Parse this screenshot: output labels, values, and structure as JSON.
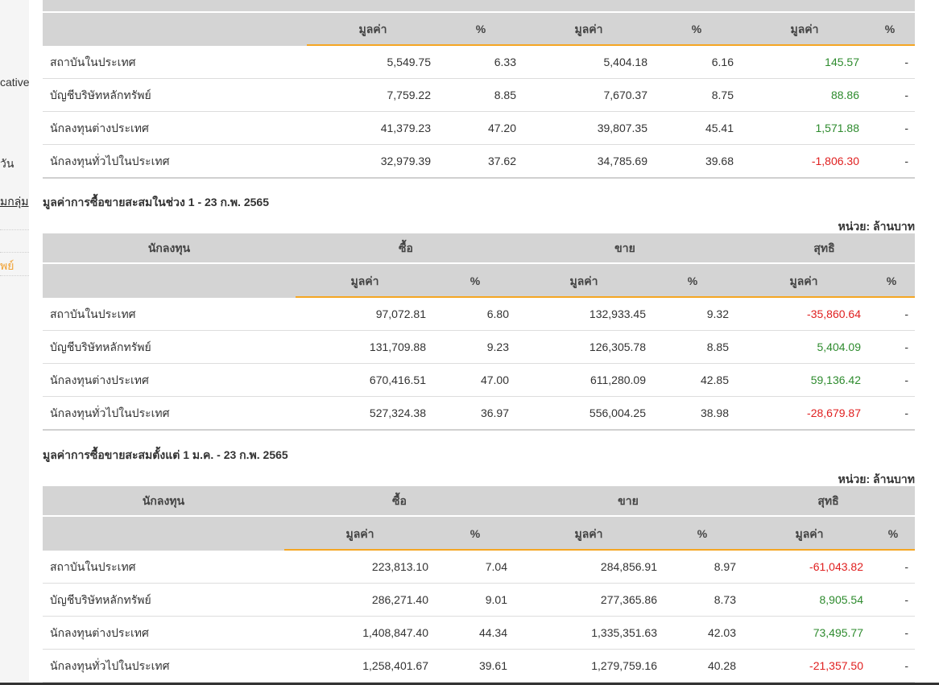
{
  "sidebar": {
    "item1": "cative",
    "item2": "วัน",
    "item3": "มกลุ่ม",
    "item4": "พย์"
  },
  "table1": {
    "sub_headers": [
      "มูลค่า",
      "%",
      "มูลค่า",
      "%",
      "มูลค่า",
      "%"
    ],
    "rows": [
      {
        "investor": "สถาบันในประเทศ",
        "buy_val": "5,549.75",
        "buy_pct": "6.33",
        "sell_val": "5,404.18",
        "sell_pct": "6.16",
        "net_val": "145.57",
        "net_pct": "-"
      },
      {
        "investor": "บัญชีบริษัทหลักทรัพย์",
        "buy_val": "7,759.22",
        "buy_pct": "8.85",
        "sell_val": "7,670.37",
        "sell_pct": "8.75",
        "net_val": "88.86",
        "net_pct": "-"
      },
      {
        "investor": "นักลงทุนต่างประเทศ",
        "buy_val": "41,379.23",
        "buy_pct": "47.20",
        "sell_val": "39,807.35",
        "sell_pct": "45.41",
        "net_val": "1,571.88",
        "net_pct": "-"
      },
      {
        "investor": "นักลงทุนทั่วไปในประเทศ",
        "buy_val": "32,979.39",
        "buy_pct": "37.62",
        "sell_val": "34,785.69",
        "sell_pct": "39.68",
        "net_val": "-1,806.30",
        "net_pct": "-"
      }
    ]
  },
  "table2": {
    "title": "มูลค่าการซื้อขายสะสมในช่วง 1 - 23 ก.พ. 2565",
    "unit": "หน่วย: ล้านบาท",
    "header": {
      "investor": "นักลงทุน",
      "buy": "ซื้อ",
      "sell": "ขาย",
      "net": "สุทธิ"
    },
    "sub_headers": [
      "มูลค่า",
      "%",
      "มูลค่า",
      "%",
      "มูลค่า",
      "%"
    ],
    "rows": [
      {
        "investor": "สถาบันในประเทศ",
        "buy_val": "97,072.81",
        "buy_pct": "6.80",
        "sell_val": "132,933.45",
        "sell_pct": "9.32",
        "net_val": "-35,860.64",
        "net_pct": "-"
      },
      {
        "investor": "บัญชีบริษัทหลักทรัพย์",
        "buy_val": "131,709.88",
        "buy_pct": "9.23",
        "sell_val": "126,305.78",
        "sell_pct": "8.85",
        "net_val": "5,404.09",
        "net_pct": "-"
      },
      {
        "investor": "นักลงทุนต่างประเทศ",
        "buy_val": "670,416.51",
        "buy_pct": "47.00",
        "sell_val": "611,280.09",
        "sell_pct": "42.85",
        "net_val": "59,136.42",
        "net_pct": "-"
      },
      {
        "investor": "นักลงทุนทั่วไปในประเทศ",
        "buy_val": "527,324.38",
        "buy_pct": "36.97",
        "sell_val": "556,004.25",
        "sell_pct": "38.98",
        "net_val": "-28,679.87",
        "net_pct": "-"
      }
    ]
  },
  "table3": {
    "title": "มูลค่าการซื้อขายสะสมตั้งแต่ 1 ม.ค. - 23 ก.พ. 2565",
    "unit": "หน่วย: ล้านบาท",
    "header": {
      "investor": "นักลงทุน",
      "buy": "ซื้อ",
      "sell": "ขาย",
      "net": "สุทธิ"
    },
    "sub_headers": [
      "มูลค่า",
      "%",
      "มูลค่า",
      "%",
      "มูลค่า",
      "%"
    ],
    "rows": [
      {
        "investor": "สถาบันในประเทศ",
        "buy_val": "223,813.10",
        "buy_pct": "7.04",
        "sell_val": "284,856.91",
        "sell_pct": "8.97",
        "net_val": "-61,043.82",
        "net_pct": "-"
      },
      {
        "investor": "บัญชีบริษัทหลักทรัพย์",
        "buy_val": "286,271.40",
        "buy_pct": "9.01",
        "sell_val": "277,365.86",
        "sell_pct": "8.73",
        "net_val": "8,905.54",
        "net_pct": "-"
      },
      {
        "investor": "นักลงทุนต่างประเทศ",
        "buy_val": "1,408,847.40",
        "buy_pct": "44.34",
        "sell_val": "1,335,351.63",
        "sell_pct": "42.03",
        "net_val": "73,495.77",
        "net_pct": "-"
      },
      {
        "investor": "นักลงทุนทั่วไปในประเทศ",
        "buy_val": "1,258,401.67",
        "buy_pct": "39.61",
        "sell_val": "1,279,759.16",
        "sell_pct": "40.28",
        "net_val": "-21,357.50",
        "net_pct": "-"
      }
    ]
  },
  "colors": {
    "positive": "#2e8b2e",
    "negative": "#e02020",
    "accent": "#f5a623",
    "header_bg": "#d4d4d4"
  }
}
